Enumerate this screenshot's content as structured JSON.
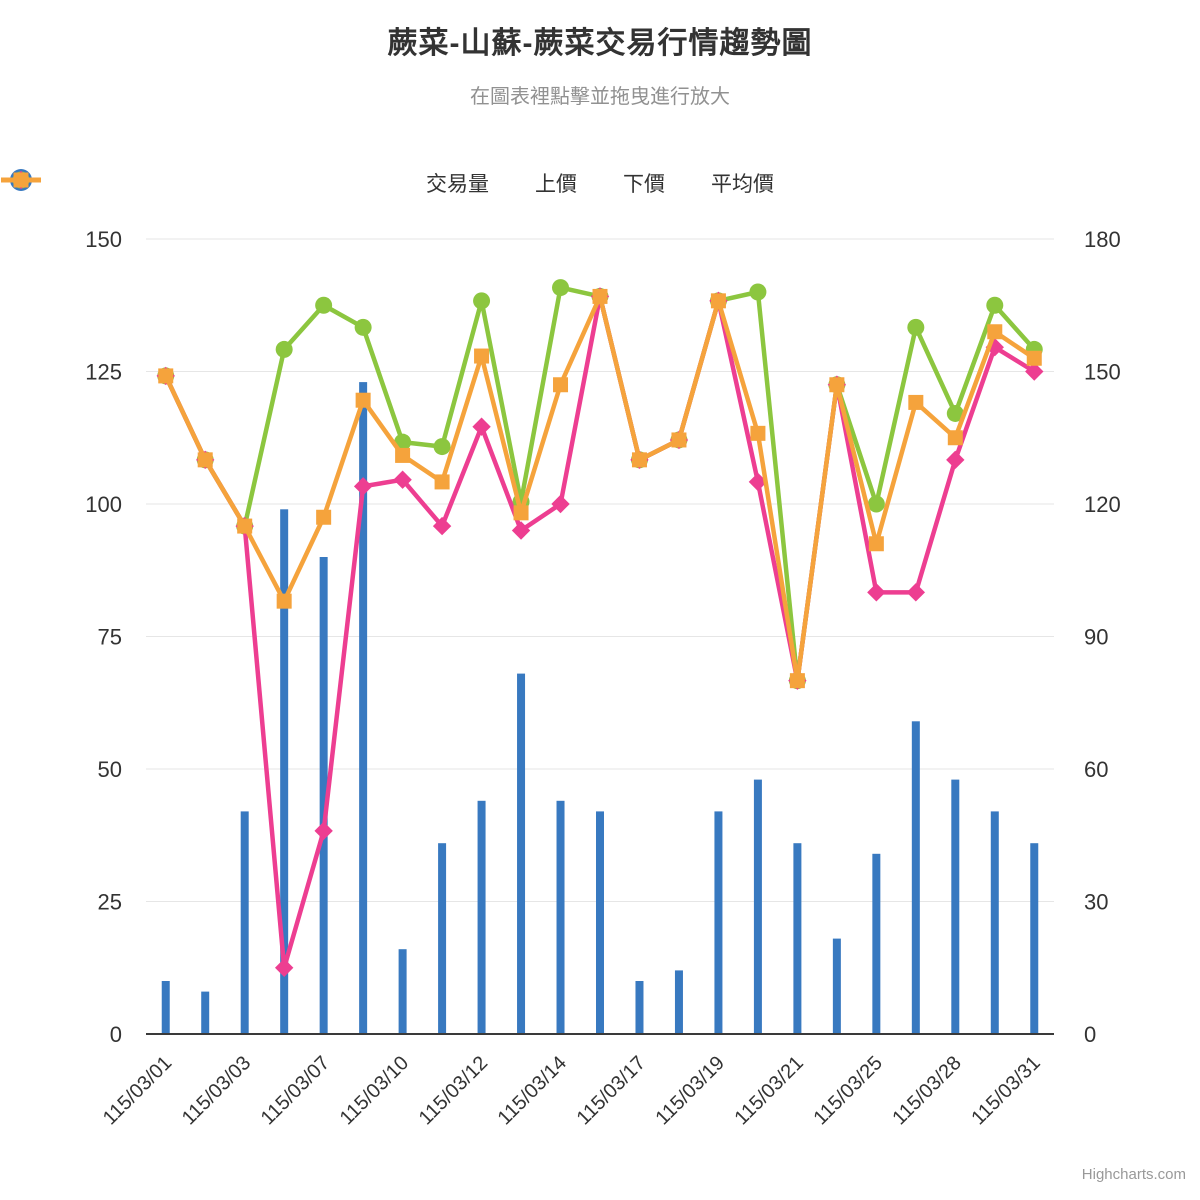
{
  "title": "蕨菜-山蘇-蕨菜交易行情趨勢圖",
  "subtitle": "在圖表裡點擊並拖曳進行放大",
  "credit": "Highcharts.com",
  "colors": {
    "volume": "#3879c0",
    "upper_price": "#8cc63f",
    "lower_price": "#ed3e91",
    "avg_price": "#f5a33c",
    "grid": "#e6e6e6",
    "axis_line": "#3a3a3a",
    "axis_label": "#333333",
    "subtitle_text": "#919191",
    "credit_text": "#999999"
  },
  "legend": {
    "items": [
      {
        "label": "交易量",
        "marker": "circle",
        "color": "#3879c0"
      },
      {
        "label": "上價",
        "marker": "line-circle",
        "color": "#8cc63f"
      },
      {
        "label": "下價",
        "marker": "line-diamond",
        "color": "#ed3e91"
      },
      {
        "label": "平均價",
        "marker": "line-square",
        "color": "#f5a33c"
      }
    ]
  },
  "chart_data": {
    "type": "column+line",
    "categories": [
      "115/03/01",
      "",
      "115/03/03",
      "",
      "115/03/07",
      "",
      "115/03/10",
      "",
      "115/03/12",
      "",
      "115/03/14",
      "",
      "115/03/17",
      "",
      "115/03/19",
      "",
      "115/03/21",
      "",
      "115/03/25",
      "",
      "115/03/28",
      "",
      "115/03/31"
    ],
    "x_tick_labels": [
      "115/03/01",
      "115/03/03",
      "115/03/07",
      "115/03/10",
      "115/03/12",
      "115/03/14",
      "115/03/17",
      "115/03/19",
      "115/03/21",
      "115/03/25",
      "115/03/28",
      "115/03/31"
    ],
    "y_axis_left": {
      "ticks": [
        150,
        125,
        100,
        75,
        50,
        25,
        0
      ],
      "min": 0,
      "max": 150
    },
    "y_axis_right": {
      "ticks": [
        180,
        150,
        120,
        90,
        60,
        30,
        0
      ],
      "min": 0,
      "max": 180
    },
    "grid": true,
    "legend_position": "top-center",
    "series": [
      {
        "name": "交易量",
        "type": "column",
        "axis": "left",
        "color": "#3879c0",
        "values": [
          10,
          8,
          42,
          99,
          90,
          123,
          16,
          36,
          44,
          68,
          44,
          42,
          10,
          12,
          42,
          48,
          36,
          18,
          34,
          59,
          48,
          42,
          36
        ]
      },
      {
        "name": "上價",
        "type": "line",
        "axis": "right",
        "marker": "circle",
        "color": "#8cc63f",
        "values": [
          149,
          130,
          115,
          155,
          165,
          160,
          134,
          133,
          166,
          120.5,
          169,
          167,
          130,
          134.5,
          166,
          168,
          80,
          147,
          120,
          160,
          140.5,
          165,
          155
        ]
      },
      {
        "name": "下價",
        "type": "line",
        "axis": "right",
        "marker": "diamond",
        "color": "#ed3e91",
        "values": [
          149,
          130,
          115,
          15,
          46,
          124,
          125.5,
          115,
          137.5,
          114,
          120,
          167,
          130,
          134.5,
          166,
          125,
          80,
          147,
          100,
          100,
          130,
          155.5,
          150
        ]
      },
      {
        "name": "平均價",
        "type": "line",
        "axis": "right",
        "marker": "square",
        "color": "#f5a33c",
        "values": [
          149,
          130,
          115,
          98,
          117,
          143.5,
          131,
          125,
          153.5,
          118,
          147,
          167,
          130,
          134.5,
          166,
          136,
          80,
          147,
          111,
          143,
          135,
          159,
          153
        ]
      }
    ]
  }
}
